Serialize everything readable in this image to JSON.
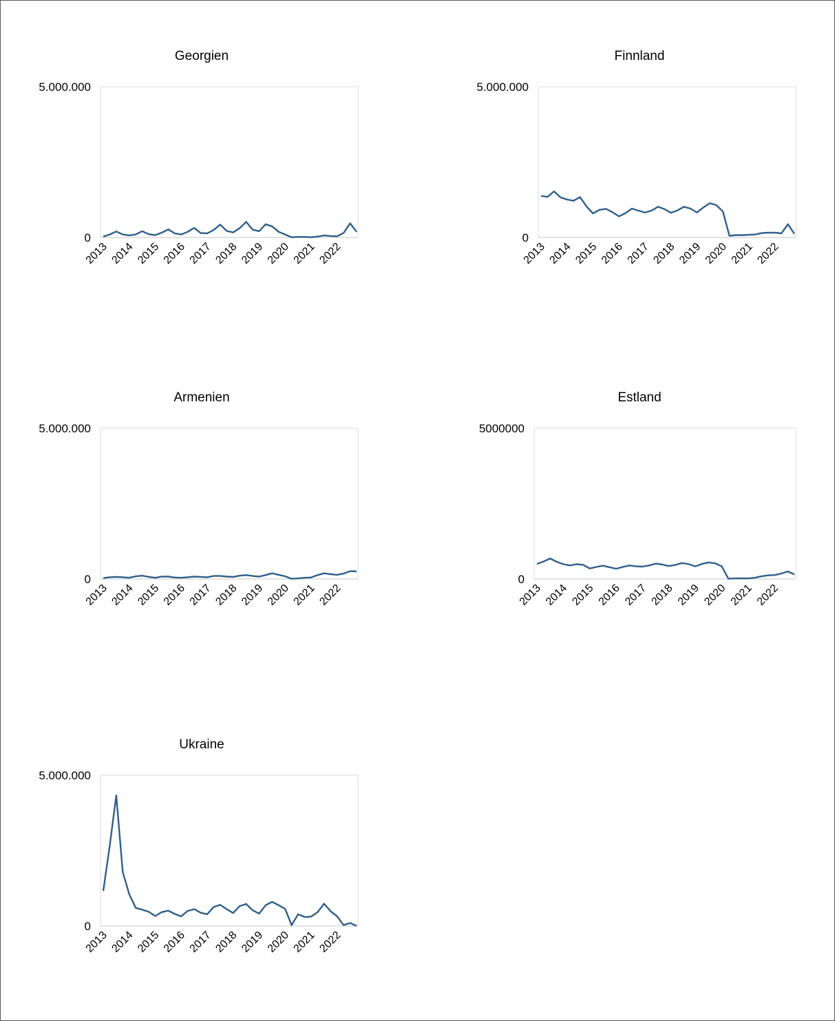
{
  "accent_color": "#2f5f8a",
  "grid_color": "#d9d9d9",
  "axis_color": "#d9d9d9",
  "chart_data": [
    {
      "id": "georgien",
      "type": "line",
      "title": "Georgien",
      "ylim": [
        0,
        5000000
      ],
      "y_ticks": [
        0,
        5000000
      ],
      "y_tick_labels": [
        "0",
        "5.000.000"
      ],
      "x_tick_labels": [
        "2013",
        "2014",
        "2015",
        "2016",
        "2017",
        "2018",
        "2019",
        "2020",
        "2021",
        "2022"
      ],
      "grid": false,
      "legend": "none",
      "series": [
        {
          "values": [
            30000,
            100000,
            200000,
            100000,
            70000,
            100000,
            210000,
            110000,
            80000,
            160000,
            270000,
            140000,
            100000,
            190000,
            320000,
            150000,
            140000,
            250000,
            430000,
            220000,
            170000,
            310000,
            520000,
            260000,
            210000,
            440000,
            370000,
            190000,
            100000,
            10000,
            20000,
            20000,
            10000,
            30000,
            70000,
            50000,
            40000,
            150000,
            470000,
            190000
          ]
        }
      ]
    },
    {
      "id": "finnland",
      "type": "line",
      "title": "Finnland",
      "ylim": [
        0,
        5000000
      ],
      "y_ticks": [
        0,
        5000000
      ],
      "y_tick_labels": [
        "0",
        "5.000.000"
      ],
      "x_tick_labels": [
        "2013",
        "2014",
        "2015",
        "2016",
        "2017",
        "2018",
        "2019",
        "2020",
        "2021",
        "2022"
      ],
      "grid": false,
      "legend": "none",
      "series": [
        {
          "values": [
            1380000,
            1350000,
            1530000,
            1330000,
            1260000,
            1220000,
            1340000,
            1030000,
            800000,
            920000,
            950000,
            840000,
            700000,
            810000,
            960000,
            890000,
            830000,
            890000,
            1020000,
            940000,
            820000,
            900000,
            1020000,
            960000,
            830000,
            1000000,
            1140000,
            1070000,
            860000,
            60000,
            80000,
            80000,
            90000,
            100000,
            150000,
            160000,
            160000,
            140000,
            440000,
            120000
          ]
        }
      ]
    },
    {
      "id": "armenien",
      "type": "line",
      "title": "Armenien",
      "ylim": [
        0,
        5000000
      ],
      "y_ticks": [
        0,
        5000000
      ],
      "y_tick_labels": [
        "0",
        "5.000.000"
      ],
      "x_tick_labels": [
        "2013",
        "2014",
        "2015",
        "2016",
        "2017",
        "2018",
        "2019",
        "2020",
        "2021",
        "2022"
      ],
      "grid": false,
      "legend": "none",
      "series": [
        {
          "values": [
            30000,
            60000,
            70000,
            60000,
            40000,
            90000,
            110000,
            70000,
            40000,
            80000,
            80000,
            50000,
            40000,
            60000,
            80000,
            70000,
            60000,
            100000,
            100000,
            80000,
            70000,
            110000,
            130000,
            100000,
            80000,
            130000,
            190000,
            140000,
            90000,
            10000,
            20000,
            40000,
            50000,
            130000,
            190000,
            160000,
            140000,
            180000,
            260000,
            250000
          ]
        }
      ]
    },
    {
      "id": "estland",
      "type": "line",
      "title": "Estland",
      "ylim": [
        0,
        5000000
      ],
      "y_ticks": [
        0,
        5000000
      ],
      "y_tick_labels": [
        "0",
        "5000000"
      ],
      "x_tick_labels": [
        "2013",
        "2014",
        "2015",
        "2016",
        "2017",
        "2018",
        "2019",
        "2020",
        "2021",
        "2022"
      ],
      "grid": false,
      "legend": "none",
      "series": [
        {
          "values": [
            500000,
            580000,
            680000,
            570000,
            490000,
            450000,
            490000,
            470000,
            350000,
            400000,
            440000,
            390000,
            340000,
            400000,
            450000,
            420000,
            410000,
            450000,
            510000,
            480000,
            430000,
            470000,
            530000,
            490000,
            420000,
            500000,
            550000,
            520000,
            420000,
            10000,
            20000,
            20000,
            20000,
            40000,
            90000,
            120000,
            130000,
            180000,
            250000,
            150000
          ]
        }
      ]
    },
    {
      "id": "ukraine",
      "type": "line",
      "title": "Ukraine",
      "ylim": [
        0,
        5000000
      ],
      "y_ticks": [
        0,
        5000000
      ],
      "y_tick_labels": [
        "0",
        "5.000.000"
      ],
      "x_tick_labels": [
        "2013",
        "2014",
        "2015",
        "2016",
        "2017",
        "2018",
        "2019",
        "2020",
        "2021",
        "2022"
      ],
      "grid": false,
      "legend": "none",
      "series": [
        {
          "values": [
            1160000,
            2660000,
            4330000,
            1790000,
            1060000,
            600000,
            540000,
            470000,
            330000,
            460000,
            510000,
            400000,
            320000,
            500000,
            560000,
            440000,
            390000,
            630000,
            700000,
            560000,
            430000,
            660000,
            730000,
            520000,
            410000,
            690000,
            800000,
            690000,
            570000,
            30000,
            390000,
            300000,
            310000,
            460000,
            740000,
            490000,
            320000,
            30000,
            100000,
            0
          ]
        }
      ]
    }
  ]
}
